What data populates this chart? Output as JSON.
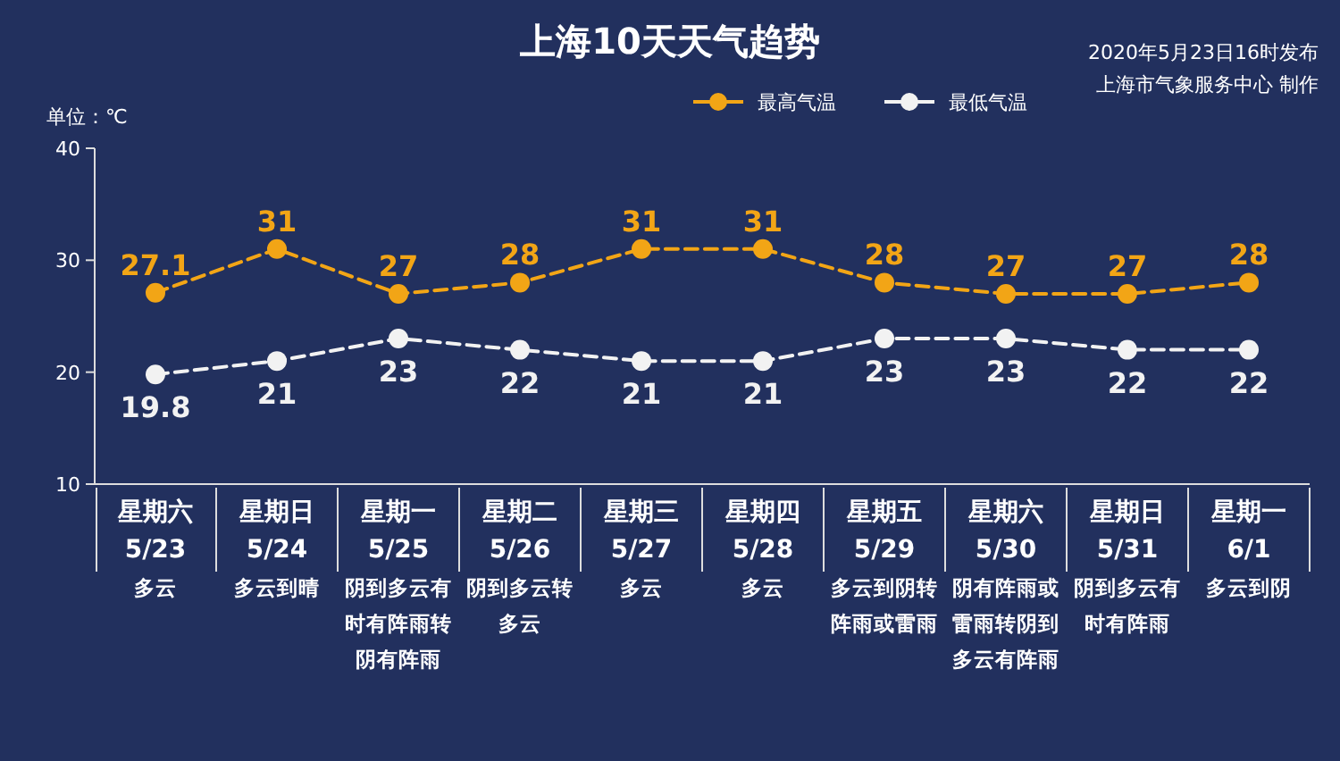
{
  "chart_data": {
    "type": "line",
    "title": "上海10天天气趋势",
    "ylabel": "单位：℃",
    "annotations": [
      "2020年5月23日16时发布",
      "上海市气象服务中心 制作"
    ],
    "categories": [
      "星期六\n5/23\n多云",
      "星期日\n5/24\n多云到晴",
      "星期一\n5/25\n阴到多云有时有阵雨转阴有阵雨",
      "星期二\n5/26\n阴到多云转多云",
      "星期三\n5/27\n多云",
      "星期四\n5/28\n多云",
      "星期五\n5/29\n多云到阴转阵雨或雷雨",
      "星期六\n5/30\n阴有阵雨或雷雨转阴到多云有阵雨",
      "星期日\n5/31\n阴到多云有时有阵雨",
      "星期一\n6/1\n多云到阴"
    ],
    "series": [
      {
        "name": "最高气温",
        "color": "#f2a516",
        "values": [
          27.1,
          31,
          27,
          28,
          31,
          31,
          28,
          27,
          27,
          28
        ]
      },
      {
        "name": "最低气温",
        "color": "#f2f2f2",
        "values": [
          19.8,
          21,
          23,
          22,
          21,
          21,
          23,
          23,
          22,
          22
        ]
      }
    ],
    "ylim": [
      10,
      40
    ],
    "yticks": [
      10,
      20,
      30,
      40
    ],
    "grid": false,
    "legend": "top",
    "marker": "circle",
    "line_style": "dashed",
    "data_labels": true
  }
}
